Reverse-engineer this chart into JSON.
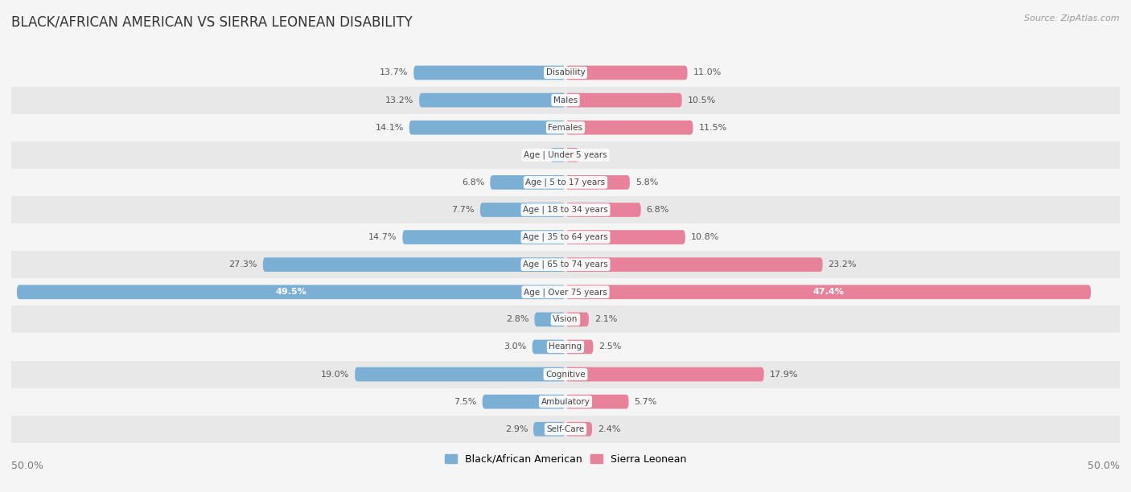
{
  "title": "BLACK/AFRICAN AMERICAN VS SIERRA LEONEAN DISABILITY",
  "source": "Source: ZipAtlas.com",
  "categories": [
    "Disability",
    "Males",
    "Females",
    "Age | Under 5 years",
    "Age | 5 to 17 years",
    "Age | 18 to 34 years",
    "Age | 35 to 64 years",
    "Age | 65 to 74 years",
    "Age | Over 75 years",
    "Vision",
    "Hearing",
    "Cognitive",
    "Ambulatory",
    "Self-Care"
  ],
  "black_values": [
    13.7,
    13.2,
    14.1,
    1.4,
    6.8,
    7.7,
    14.7,
    27.3,
    49.5,
    2.8,
    3.0,
    19.0,
    7.5,
    2.9
  ],
  "sierra_values": [
    11.0,
    10.5,
    11.5,
    1.2,
    5.8,
    6.8,
    10.8,
    23.2,
    47.4,
    2.1,
    2.5,
    17.9,
    5.7,
    2.4
  ],
  "black_color": "#7bafd4",
  "black_color_dark": "#5a8fbf",
  "sierra_color": "#e8829a",
  "sierra_color_dark": "#d4607a",
  "black_label": "Black/African American",
  "sierra_label": "Sierra Leonean",
  "axis_limit": 50.0,
  "row_colors": [
    "#f5f5f5",
    "#e8e8e8"
  ],
  "bar_height": 0.52,
  "title_fontsize": 12,
  "label_fontsize": 8,
  "value_fontsize": 8,
  "tick_fontsize": 9
}
